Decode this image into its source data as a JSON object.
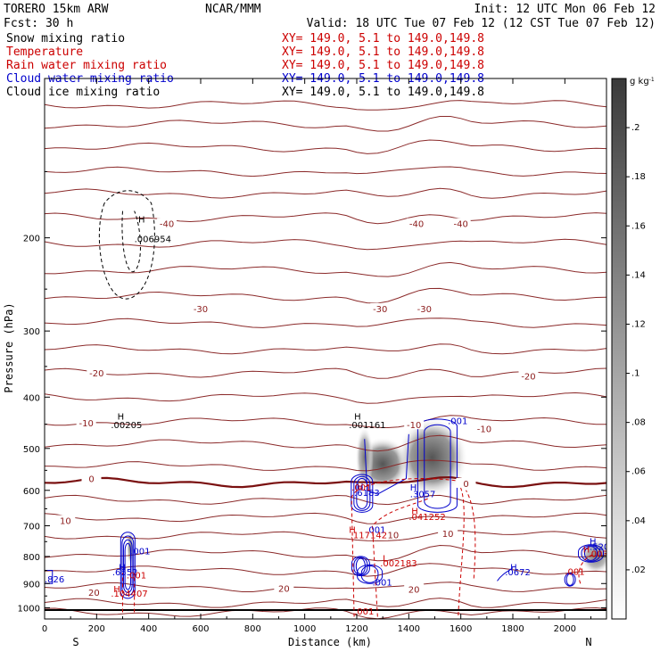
{
  "header": {
    "model": "TORERO  15km ARW",
    "org": "NCAR/MMM",
    "init": "Init: 12 UTC Mon 06 Feb 12",
    "fcst": "Fcst:   30 h",
    "valid": "Valid: 18 UTC Tue 07 Feb 12 (12 CST Tue 07 Feb 12)"
  },
  "fields": [
    {
      "name": "Snow mixing ratio",
      "xy": "XY= 149.0,  5.1 to 149.0,149.8",
      "color": "#000000",
      "xy_color": "#cc0000"
    },
    {
      "name": "Temperature",
      "xy": "XY= 149.0,  5.1 to 149.0,149.8",
      "color": "#cc0000",
      "xy_color": "#cc0000"
    },
    {
      "name": "Rain water mixing ratio",
      "xy": "XY= 149.0,  5.1 to 149.0,149.8",
      "color": "#cc0000",
      "xy_color": "#cc0000"
    },
    {
      "name": "Cloud water mixing ratio",
      "xy": "XY= 149.0,  5.1 to 149.0,149.8",
      "color": "#0000cc",
      "xy_color": "#0000cc"
    },
    {
      "name": "Cloud ice mixing ratio",
      "xy": "XY= 149.0,  5.1 to 149.0,149.8",
      "color": "#000000",
      "xy_color": "#000000"
    }
  ],
  "chart_data": {
    "type": "heatmap",
    "xlabel": "Distance (km)",
    "ylabel": "Pressure (hPa)",
    "xlim": [
      0,
      2160
    ],
    "ylim": [
      1050,
      100
    ],
    "x_ticks": [
      0,
      200,
      400,
      600,
      800,
      1000,
      1200,
      1400,
      1600,
      1800,
      2000
    ],
    "y_ticks": [
      200,
      300,
      400,
      500,
      600,
      700,
      800,
      900,
      1000
    ],
    "x_end_labels": {
      "left": "S",
      "right": "N"
    },
    "colorbar": {
      "unit": "g kg",
      "unit_exp": "-1",
      "ticks": [
        ".02",
        ".04",
        ".06",
        ".08",
        ".1",
        ".12",
        ".14",
        ".16",
        ".18",
        ".2"
      ],
      "tick_values": [
        0.02,
        0.04,
        0.06,
        0.08,
        0.1,
        0.12,
        0.14,
        0.16,
        0.18,
        0.2
      ],
      "range": [
        0,
        0.22
      ]
    },
    "temperature_labels": [
      {
        "text": "-40",
        "x": 470,
        "p": 188
      },
      {
        "text": "-40",
        "x": 1430,
        "p": 188
      },
      {
        "text": "-40",
        "x": 1600,
        "p": 188
      },
      {
        "text": "-30",
        "x": 600,
        "p": 272
      },
      {
        "text": "-30",
        "x": 1290,
        "p": 272
      },
      {
        "text": "-30",
        "x": 1460,
        "p": 272
      },
      {
        "text": "-20",
        "x": 200,
        "p": 360
      },
      {
        "text": "-20",
        "x": 1860,
        "p": 365
      },
      {
        "text": "-10",
        "x": 160,
        "p": 447
      },
      {
        "text": "-10",
        "x": 1420,
        "p": 451
      },
      {
        "text": "-10",
        "x": 1690,
        "p": 459
      },
      {
        "text": "0",
        "x": 180,
        "p": 570
      },
      {
        "text": "0",
        "x": 1620,
        "p": 582
      },
      {
        "text": "10",
        "x": 80,
        "p": 684
      },
      {
        "text": "10",
        "x": 1340,
        "p": 728
      },
      {
        "text": "10",
        "x": 1550,
        "p": 723
      },
      {
        "text": "20",
        "x": 190,
        "p": 935
      },
      {
        "text": "20",
        "x": 920,
        "p": 918
      },
      {
        "text": "20",
        "x": 1420,
        "p": 922
      }
    ],
    "annotations": [
      {
        "text": "H",
        "x": 360,
        "p": 187,
        "color": "#000000"
      },
      {
        "text": ".006954",
        "x": 345,
        "p": 204,
        "color": "#000000"
      },
      {
        "text": "H",
        "x": 280,
        "p": 441,
        "color": "#000000"
      },
      {
        "text": ".00205",
        "x": 255,
        "p": 458,
        "color": "#000000"
      },
      {
        "text": "H",
        "x": 1190,
        "p": 441,
        "color": "#000000"
      },
      {
        "text": ".001161",
        "x": 1170,
        "p": 458,
        "color": "#000000"
      },
      {
        "text": ".001",
        "x": 1550,
        "p": 450,
        "color": "#0000cc"
      },
      {
        "text": "H",
        "x": 1405,
        "p": 600,
        "color": "#0000cc"
      },
      {
        "text": ".3057",
        "x": 1405,
        "p": 618,
        "color": "#0000cc"
      },
      {
        "text": "H",
        "x": 1200,
        "p": 598,
        "color": "#0000cc"
      },
      {
        "text": ".6183",
        "x": 1190,
        "p": 615,
        "color": "#0000cc"
      },
      {
        "text": ".001",
        "x": 1180,
        "p": 600,
        "color": "#cc0000"
      },
      {
        "text": "H",
        "x": 1410,
        "p": 666,
        "color": "#cc0000"
      },
      {
        "text": ".041252",
        "x": 1400,
        "p": 683,
        "color": "#cc0000"
      },
      {
        "text": "H",
        "x": 1170,
        "p": 722,
        "color": "#cc0000"
      },
      {
        "text": ".001",
        "x": 1235,
        "p": 722,
        "color": "#0000cc"
      },
      {
        "text": ".117142",
        "x": 1175,
        "p": 739,
        "color": "#cc0000"
      },
      {
        "text": "L",
        "x": 1300,
        "p": 818,
        "color": "#cc0000"
      },
      {
        "text": ".002183",
        "x": 1290,
        "p": 835,
        "color": "#cc0000"
      },
      {
        "text": ".001",
        "x": 330,
        "p": 792,
        "color": "#0000cc"
      },
      {
        "text": "H",
        "x": 285,
        "p": 850,
        "color": "#0000cc"
      },
      {
        "text": ".6552",
        "x": 260,
        "p": 868,
        "color": "#0000cc"
      },
      {
        "text": ".001",
        "x": 315,
        "p": 880,
        "color": "#cc0000"
      },
      {
        "text": "H",
        "x": 265,
        "p": 935,
        "color": "#cc0000"
      },
      {
        "text": ".104407",
        "x": 255,
        "p": 953,
        "color": "#cc0000"
      },
      {
        "text": ".826",
        "x": 0,
        "p": 895,
        "color": "#0000cc"
      },
      {
        "text": ".001",
        "x": 1260,
        "p": 908,
        "color": "#0000cc"
      },
      {
        "text": ".001",
        "x": 1190,
        "p": 1030,
        "color": "#cc0000"
      },
      {
        "text": "H",
        "x": 1790,
        "p": 850,
        "color": "#0000cc"
      },
      {
        "text": ".0672",
        "x": 1770,
        "p": 868,
        "color": "#0000cc"
      },
      {
        "text": "H",
        "x": 2095,
        "p": 760,
        "color": "#0000cc"
      },
      {
        "text": ".520",
        "x": 2095,
        "p": 777,
        "color": "#0000cc"
      },
      {
        "text": "H",
        "x": 2070,
        "p": 786,
        "color": "#cc0000"
      },
      {
        "text": ".003",
        "x": 2090,
        "p": 802,
        "color": "#cc0000"
      },
      {
        "text": ".001",
        "x": 2000,
        "p": 866,
        "color": "#cc0000"
      }
    ]
  }
}
